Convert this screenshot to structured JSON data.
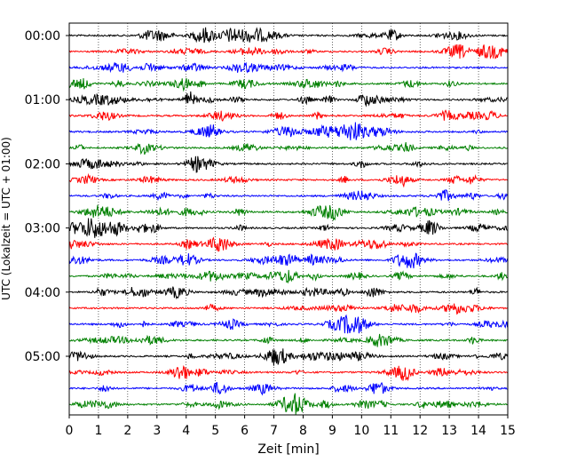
{
  "chart_data": {
    "type": "line",
    "title": "",
    "xlabel": "Zeit  [min]",
    "ylabel": "UTC (Lokalzeit = UTC + 01:00)",
    "xlim": [
      0,
      15
    ],
    "x_ticks": [
      "0",
      "1",
      "2",
      "3",
      "4",
      "5",
      "6",
      "7",
      "8",
      "9",
      "10",
      "11",
      "12",
      "13",
      "14",
      "15"
    ],
    "y_ticks": [
      "00:00",
      "01:00",
      "02:00",
      "03:00",
      "04:00",
      "05:00"
    ],
    "trace_interval_min": 15,
    "trace_count": 24,
    "trace_colors": [
      "#000000",
      "#ff0000",
      "#0000ff",
      "#008000"
    ],
    "grid_x": true,
    "grid_style": "dotted"
  }
}
